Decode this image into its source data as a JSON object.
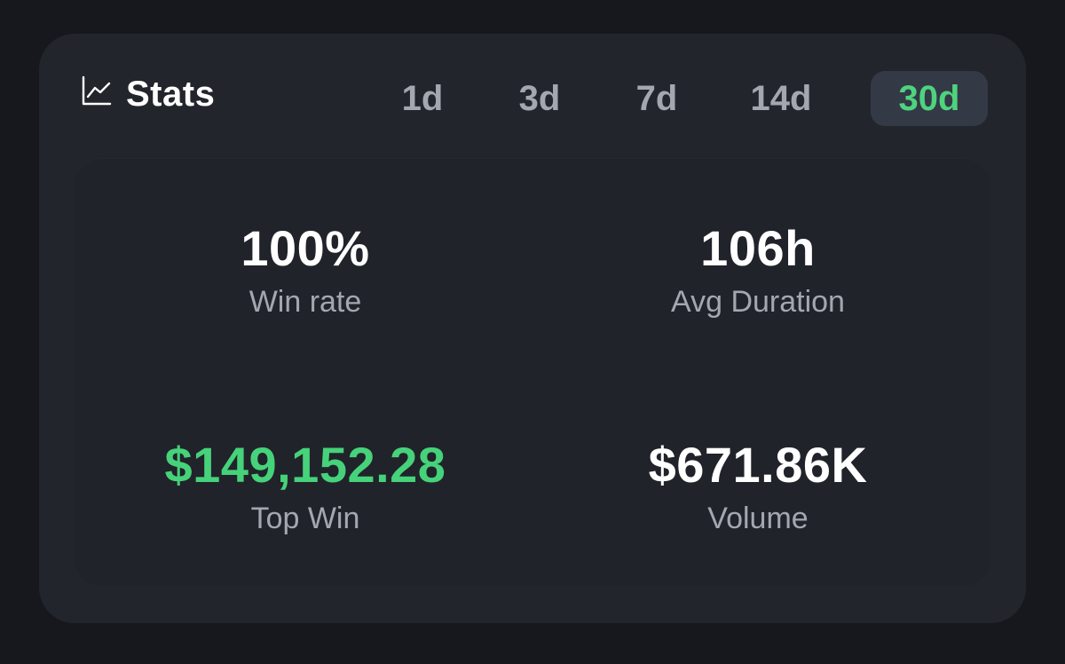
{
  "header": {
    "title": "Stats",
    "icon": "line-chart-icon"
  },
  "tabs": [
    {
      "label": "1d",
      "active": false
    },
    {
      "label": "3d",
      "active": false
    },
    {
      "label": "7d",
      "active": false
    },
    {
      "label": "14d",
      "active": false
    },
    {
      "label": "30d",
      "active": true
    }
  ],
  "stats": {
    "win_rate": {
      "value": "100%",
      "label": "Win rate"
    },
    "avg_duration": {
      "value": "106h",
      "label": "Avg Duration"
    },
    "top_win": {
      "value": "$149,152.28",
      "label": "Top Win"
    },
    "volume": {
      "value": "$671.86K",
      "label": "Volume"
    }
  },
  "colors": {
    "background": "#17181d",
    "card": "#23252c",
    "accent_green": "#46d27a",
    "active_tab_bg": "#343946",
    "muted_text": "#a4a7b0"
  }
}
